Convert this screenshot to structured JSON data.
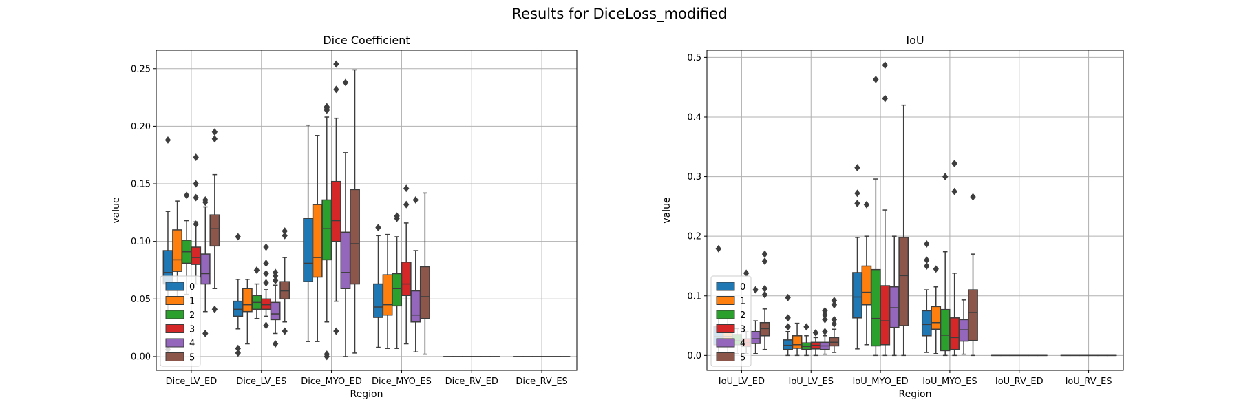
{
  "suptitle": "Results for DiceLoss_modified",
  "colors": {
    "0": "#1f77b4",
    "1": "#ff7f0e",
    "2": "#2ca02c",
    "3": "#d62728",
    "4": "#9467bd",
    "5": "#8c564b",
    "box_edge": "#3d3d3d",
    "grid": "#b0b0b0"
  },
  "chart_data": [
    {
      "type": "box",
      "title": "Dice Coefficient",
      "xlabel": "Region",
      "ylabel": "value",
      "ylim": [
        -0.012,
        0.266
      ],
      "yticks": [
        0.0,
        0.05,
        0.1,
        0.15,
        0.2,
        0.25
      ],
      "ytick_labels": [
        "0.00",
        "0.05",
        "0.10",
        "0.15",
        "0.20",
        "0.25"
      ],
      "grid": true,
      "legend": {
        "placement": "lower-left",
        "entries": [
          "0",
          "1",
          "2",
          "3",
          "4",
          "5"
        ]
      },
      "categories": [
        "Dice_LV_ED",
        "Dice_LV_ES",
        "Dice_MYO_ED",
        "Dice_MYO_ES",
        "Dice_RV_ED",
        "Dice_RV_ES"
      ],
      "series": [
        {
          "name": "0",
          "boxes": [
            {
              "q1": 0.063,
              "median": 0.073,
              "q3": 0.092,
              "wl": 0.04,
              "wh": 0.126,
              "fliers": [
                0.188,
                0.006
              ]
            },
            {
              "q1": 0.035,
              "median": 0.041,
              "q3": 0.048,
              "wl": 0.024,
              "wh": 0.067,
              "fliers": [
                0.104,
                0.007,
                0.003
              ]
            },
            {
              "q1": 0.065,
              "median": 0.081,
              "q3": 0.12,
              "wl": 0.013,
              "wh": 0.201,
              "fliers": []
            },
            {
              "q1": 0.034,
              "median": 0.043,
              "q3": 0.063,
              "wl": 0.008,
              "wh": 0.105,
              "fliers": [
                0.112
              ]
            },
            {
              "q1": 0,
              "median": 0,
              "q3": 0,
              "wl": 0,
              "wh": 0,
              "fliers": []
            },
            {
              "q1": 0,
              "median": 0,
              "q3": 0,
              "wl": 0,
              "wh": 0,
              "fliers": []
            }
          ]
        },
        {
          "name": "1",
          "boxes": [
            {
              "q1": 0.074,
              "median": 0.084,
              "q3": 0.11,
              "wl": 0.047,
              "wh": 0.135,
              "fliers": []
            },
            {
              "q1": 0.039,
              "median": 0.045,
              "q3": 0.059,
              "wl": 0.011,
              "wh": 0.067,
              "fliers": []
            },
            {
              "q1": 0.069,
              "median": 0.086,
              "q3": 0.132,
              "wl": 0.013,
              "wh": 0.192,
              "fliers": []
            },
            {
              "q1": 0.036,
              "median": 0.045,
              "q3": 0.071,
              "wl": 0.007,
              "wh": 0.106,
              "fliers": []
            },
            {
              "q1": 0,
              "median": 0,
              "q3": 0,
              "wl": 0,
              "wh": 0,
              "fliers": []
            },
            {
              "q1": 0,
              "median": 0,
              "q3": 0,
              "wl": 0,
              "wh": 0,
              "fliers": []
            }
          ]
        },
        {
          "name": "2",
          "boxes": [
            {
              "q1": 0.081,
              "median": 0.091,
              "q3": 0.101,
              "wl": 0.054,
              "wh": 0.118,
              "fliers": [
                0.14
              ]
            },
            {
              "q1": 0.041,
              "median": 0.047,
              "q3": 0.053,
              "wl": 0.033,
              "wh": 0.063,
              "fliers": [
                0.075
              ]
            },
            {
              "q1": 0.084,
              "median": 0.111,
              "q3": 0.136,
              "wl": 0.03,
              "wh": 0.208,
              "fliers": [
                0.217,
                0.216,
                0.214,
                0.002,
                0.0
              ]
            },
            {
              "q1": 0.044,
              "median": 0.059,
              "q3": 0.072,
              "wl": 0.007,
              "wh": 0.104,
              "fliers": [
                0.122,
                0.12
              ]
            },
            {
              "q1": 0,
              "median": 0,
              "q3": 0,
              "wl": 0,
              "wh": 0,
              "fliers": []
            },
            {
              "q1": 0,
              "median": 0,
              "q3": 0,
              "wl": 0,
              "wh": 0,
              "fliers": []
            }
          ]
        },
        {
          "name": "3",
          "boxes": [
            {
              "q1": 0.08,
              "median": 0.086,
              "q3": 0.095,
              "wl": 0.063,
              "wh": 0.117,
              "fliers": [
                0.173,
                0.15,
                0.138,
                0.115
              ]
            },
            {
              "q1": 0.041,
              "median": 0.045,
              "q3": 0.05,
              "wl": 0.035,
              "wh": 0.058,
              "fliers": [
                0.095,
                0.081,
                0.072,
                0.064,
                0.027
              ]
            },
            {
              "q1": 0.1,
              "median": 0.118,
              "q3": 0.152,
              "wl": 0.048,
              "wh": 0.207,
              "fliers": [
                0.254,
                0.232,
                0.022
              ]
            },
            {
              "q1": 0.053,
              "median": 0.063,
              "q3": 0.082,
              "wl": 0.011,
              "wh": 0.116,
              "fliers": [
                0.146,
                0.132
              ]
            },
            {
              "q1": 0,
              "median": 0,
              "q3": 0,
              "wl": 0,
              "wh": 0,
              "fliers": []
            },
            {
              "q1": 0,
              "median": 0,
              "q3": 0,
              "wl": 0,
              "wh": 0,
              "fliers": []
            }
          ]
        },
        {
          "name": "4",
          "boxes": [
            {
              "q1": 0.063,
              "median": 0.072,
              "q3": 0.089,
              "wl": 0.039,
              "wh": 0.13,
              "fliers": [
                0.136,
                0.134,
                0.02
              ]
            },
            {
              "q1": 0.032,
              "median": 0.037,
              "q3": 0.047,
              "wl": 0.02,
              "wh": 0.062,
              "fliers": [
                0.073,
                0.07,
                0.066,
                0.011
              ]
            },
            {
              "q1": 0.059,
              "median": 0.073,
              "q3": 0.108,
              "wl": 0.0,
              "wh": 0.177,
              "fliers": [
                0.238
              ]
            },
            {
              "q1": 0.03,
              "median": 0.036,
              "q3": 0.057,
              "wl": 0.004,
              "wh": 0.092,
              "fliers": [
                0.136
              ]
            },
            {
              "q1": 0,
              "median": 0,
              "q3": 0,
              "wl": 0,
              "wh": 0,
              "fliers": []
            },
            {
              "q1": 0,
              "median": 0,
              "q3": 0,
              "wl": 0,
              "wh": 0,
              "fliers": []
            }
          ]
        },
        {
          "name": "5",
          "boxes": [
            {
              "q1": 0.096,
              "median": 0.111,
              "q3": 0.123,
              "wl": 0.059,
              "wh": 0.158,
              "fliers": [
                0.195,
                0.189,
                0.041
              ]
            },
            {
              "q1": 0.05,
              "median": 0.057,
              "q3": 0.065,
              "wl": 0.03,
              "wh": 0.086,
              "fliers": [
                0.109,
                0.105,
                0.022
              ]
            },
            {
              "q1": 0.063,
              "median": 0.098,
              "q3": 0.145,
              "wl": 0.003,
              "wh": 0.249,
              "fliers": []
            },
            {
              "q1": 0.033,
              "median": 0.052,
              "q3": 0.078,
              "wl": 0.002,
              "wh": 0.142,
              "fliers": []
            },
            {
              "q1": 0,
              "median": 0,
              "q3": 0,
              "wl": 0,
              "wh": 0,
              "fliers": []
            },
            {
              "q1": 0,
              "median": 0,
              "q3": 0,
              "wl": 0,
              "wh": 0,
              "fliers": []
            }
          ]
        }
      ]
    },
    {
      "type": "box",
      "title": "IoU",
      "xlabel": "Region",
      "ylabel": "value",
      "ylim": [
        -0.025,
        0.512
      ],
      "yticks": [
        0.0,
        0.1,
        0.2,
        0.3,
        0.4,
        0.5
      ],
      "ytick_labels": [
        "0.0",
        "0.1",
        "0.2",
        "0.3",
        "0.4",
        "0.5"
      ],
      "grid": true,
      "legend": {
        "placement": "lower-left",
        "entries": [
          "0",
          "1",
          "2",
          "3",
          "4",
          "5"
        ]
      },
      "categories": [
        "IoU_LV_ED",
        "IoU_LV_ES",
        "IoU_MYO_ED",
        "IoU_MYO_ES",
        "IoU_RV_ED",
        "IoU_RV_ES"
      ],
      "series": [
        {
          "name": "0",
          "boxes": [
            {
              "q1": 0.018,
              "median": 0.032,
              "q3": 0.048,
              "wl": 0.0,
              "wh": 0.07,
              "fliers": [
                0.179
              ]
            },
            {
              "q1": 0.01,
              "median": 0.017,
              "q3": 0.026,
              "wl": 0.0,
              "wh": 0.04,
              "fliers": [
                0.097,
                0.063,
                0.048
              ]
            },
            {
              "q1": 0.063,
              "median": 0.098,
              "q3": 0.139,
              "wl": 0.011,
              "wh": 0.198,
              "fliers": [
                0.315,
                0.272,
                0.255
              ]
            },
            {
              "q1": 0.033,
              "median": 0.052,
              "q3": 0.075,
              "wl": 0.005,
              "wh": 0.11,
              "fliers": [
                0.187,
                0.16,
                0.15
              ]
            },
            {
              "q1": 0,
              "median": 0,
              "q3": 0,
              "wl": 0,
              "wh": 0,
              "fliers": []
            },
            {
              "q1": 0,
              "median": 0,
              "q3": 0,
              "wl": 0,
              "wh": 0,
              "fliers": []
            }
          ]
        },
        {
          "name": "1",
          "boxes": [
            {
              "q1": 0.02,
              "median": 0.032,
              "q3": 0.05,
              "wl": 0.0,
              "wh": 0.075,
              "fliers": []
            },
            {
              "q1": 0.012,
              "median": 0.018,
              "q3": 0.033,
              "wl": 0.0,
              "wh": 0.054,
              "fliers": []
            },
            {
              "q1": 0.085,
              "median": 0.106,
              "q3": 0.15,
              "wl": 0.018,
              "wh": 0.2,
              "fliers": [
                0.253
              ]
            },
            {
              "q1": 0.044,
              "median": 0.055,
              "q3": 0.082,
              "wl": 0.003,
              "wh": 0.115,
              "fliers": [
                0.145
              ]
            },
            {
              "q1": 0,
              "median": 0,
              "q3": 0,
              "wl": 0,
              "wh": 0,
              "fliers": []
            },
            {
              "q1": 0,
              "median": 0,
              "q3": 0,
              "wl": 0,
              "wh": 0,
              "fliers": []
            }
          ]
        },
        {
          "name": "2",
          "boxes": [
            {
              "q1": 0.018,
              "median": 0.025,
              "q3": 0.035,
              "wl": 0.003,
              "wh": 0.045,
              "fliers": []
            },
            {
              "q1": 0.01,
              "median": 0.015,
              "q3": 0.021,
              "wl": 0.0,
              "wh": 0.033,
              "fliers": [
                0.048
              ]
            },
            {
              "q1": 0.016,
              "median": 0.062,
              "q3": 0.144,
              "wl": 0.0,
              "wh": 0.296,
              "fliers": [
                0.463
              ]
            },
            {
              "q1": 0.008,
              "median": 0.034,
              "q3": 0.077,
              "wl": 0.0,
              "wh": 0.174,
              "fliers": [
                0.3
              ]
            },
            {
              "q1": 0,
              "median": 0,
              "q3": 0,
              "wl": 0,
              "wh": 0,
              "fliers": []
            },
            {
              "q1": 0,
              "median": 0,
              "q3": 0,
              "wl": 0,
              "wh": 0,
              "fliers": []
            }
          ]
        },
        {
          "name": "3",
          "boxes": [
            {
              "q1": 0.015,
              "median": 0.021,
              "q3": 0.028,
              "wl": 0.003,
              "wh": 0.04,
              "fliers": [
                0.138
              ]
            },
            {
              "q1": 0.011,
              "median": 0.017,
              "q3": 0.022,
              "wl": 0.0,
              "wh": 0.03,
              "fliers": [
                0.038
              ]
            },
            {
              "q1": 0.018,
              "median": 0.058,
              "q3": 0.117,
              "wl": 0.0,
              "wh": 0.244,
              "fliers": [
                0.487,
                0.431
              ]
            },
            {
              "q1": 0.01,
              "median": 0.03,
              "q3": 0.063,
              "wl": 0.0,
              "wh": 0.138,
              "fliers": [
                0.322,
                0.275
              ]
            },
            {
              "q1": 0,
              "median": 0,
              "q3": 0,
              "wl": 0,
              "wh": 0,
              "fliers": []
            },
            {
              "q1": 0,
              "median": 0,
              "q3": 0,
              "wl": 0,
              "wh": 0,
              "fliers": []
            }
          ]
        },
        {
          "name": "4",
          "boxes": [
            {
              "q1": 0.02,
              "median": 0.028,
              "q3": 0.04,
              "wl": 0.003,
              "wh": 0.058,
              "fliers": [
                0.11
              ]
            },
            {
              "q1": 0.01,
              "median": 0.016,
              "q3": 0.022,
              "wl": 0.002,
              "wh": 0.033,
              "fliers": [
                0.075,
                0.068,
                0.06,
                0.04
              ]
            },
            {
              "q1": 0.047,
              "median": 0.08,
              "q3": 0.115,
              "wl": 0.0,
              "wh": 0.2,
              "fliers": []
            },
            {
              "q1": 0.024,
              "median": 0.043,
              "q3": 0.06,
              "wl": 0.002,
              "wh": 0.093,
              "fliers": []
            },
            {
              "q1": 0,
              "median": 0,
              "q3": 0,
              "wl": 0,
              "wh": 0,
              "fliers": []
            },
            {
              "q1": 0,
              "median": 0,
              "q3": 0,
              "wl": 0,
              "wh": 0,
              "fliers": []
            }
          ]
        },
        {
          "name": "5",
          "boxes": [
            {
              "q1": 0.033,
              "median": 0.045,
              "q3": 0.055,
              "wl": 0.01,
              "wh": 0.078,
              "fliers": [
                0.17,
                0.158,
                0.112,
                0.102
              ]
            },
            {
              "q1": 0.016,
              "median": 0.022,
              "q3": 0.03,
              "wl": 0.005,
              "wh": 0.044,
              "fliers": [
                0.092,
                0.085,
                0.06,
                0.053
              ]
            },
            {
              "q1": 0.05,
              "median": 0.134,
              "q3": 0.198,
              "wl": 0.0,
              "wh": 0.42,
              "fliers": []
            },
            {
              "q1": 0.025,
              "median": 0.072,
              "q3": 0.11,
              "wl": 0.0,
              "wh": 0.17,
              "fliers": [
                0.266
              ]
            },
            {
              "q1": 0,
              "median": 0,
              "q3": 0,
              "wl": 0,
              "wh": 0,
              "fliers": []
            },
            {
              "q1": 0,
              "median": 0,
              "q3": 0,
              "wl": 0,
              "wh": 0,
              "fliers": []
            }
          ]
        }
      ]
    }
  ]
}
